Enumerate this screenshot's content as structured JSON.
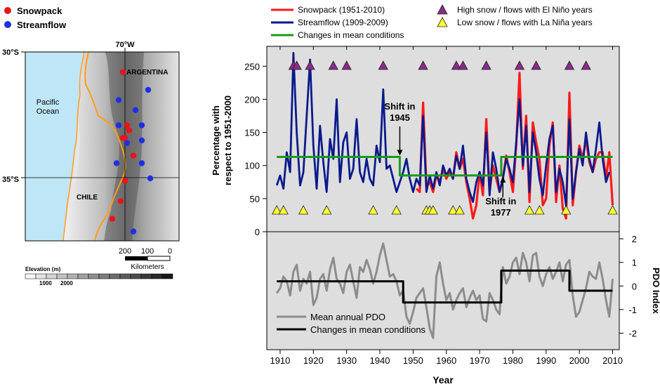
{
  "map": {
    "legend": [
      {
        "label": "Snowpack",
        "color": "#e8141a"
      },
      {
        "label": "Streamflow",
        "color": "#1f2fe0"
      }
    ],
    "lat_labels": [
      "30°S",
      "35°S"
    ],
    "lon_label": "70°W",
    "region_labels": [
      "ARGENTINA",
      "CHILE",
      "Pacific Ocean"
    ],
    "scalebar": {
      "ticks": [
        "200",
        "100",
        "0"
      ],
      "unit": "Kilometers"
    },
    "elevation": {
      "title": "Elevation (m)",
      "ticks": [
        "1000",
        "2000"
      ]
    },
    "snowpack_sites": [
      {
        "lon": -70.1,
        "lat": -30.8
      },
      {
        "lon": -69.9,
        "lat": -32.9
      },
      {
        "lon": -69.8,
        "lat": -33.1
      },
      {
        "lon": -70.0,
        "lat": -33.4
      },
      {
        "lon": -70.1,
        "lat": -33.4
      },
      {
        "lon": -69.6,
        "lat": -34.1
      },
      {
        "lon": -70.0,
        "lat": -35.1
      },
      {
        "lon": -70.2,
        "lat": -35.9
      },
      {
        "lon": -70.6,
        "lat": -36.6
      }
    ],
    "streamflow_sites": [
      {
        "lon": -68.9,
        "lat": -31.5
      },
      {
        "lon": -70.3,
        "lat": -31.9
      },
      {
        "lon": -69.5,
        "lat": -32.3
      },
      {
        "lon": -70.3,
        "lat": -32.9
      },
      {
        "lon": -69.2,
        "lat": -32.9
      },
      {
        "lon": -69.2,
        "lat": -33.5
      },
      {
        "lon": -69.9,
        "lat": -33.6
      },
      {
        "lon": -70.4,
        "lat": -34.4
      },
      {
        "lon": -69.2,
        "lat": -34.4
      },
      {
        "lon": -68.8,
        "lat": -35.0
      },
      {
        "lon": -69.6,
        "lat": -37.1
      }
    ]
  },
  "chart_data": [
    {
      "type": "line",
      "ylabel": "Percentage with respect to 1951-2000",
      "xlabel": "Year",
      "xlim": [
        1906,
        2012
      ],
      "ylim": [
        0,
        280
      ],
      "xticks": [
        1910,
        1920,
        1930,
        1940,
        1950,
        1960,
        1970,
        1980,
        1990,
        2000,
        2010
      ],
      "yticks": [
        0,
        50,
        100,
        150,
        200,
        250
      ],
      "grid": false,
      "legend_position": "top",
      "legend": [
        {
          "label": "Snowpack (1951-2010)",
          "color": "#ff1a1a",
          "kind": "line"
        },
        {
          "label": "Streamflow (1909-2009)",
          "color": "#0a1a8c",
          "kind": "line"
        },
        {
          "label": "Changes in mean conditions",
          "color": "#1a9a1a",
          "kind": "line"
        },
        {
          "label": "High snow / flows with El Niño years",
          "color": "#8b2a8b",
          "kind": "triangle"
        },
        {
          "label": "Low snow / flows with La Niña years",
          "color": "#ffff33",
          "kind": "triangle"
        }
      ],
      "series": [
        {
          "name": "Snowpack (1951-2010)",
          "color": "#ff1a1a",
          "x": [
            1951,
            1952,
            1953,
            1954,
            1955,
            1956,
            1957,
            1958,
            1959,
            1960,
            1961,
            1962,
            1963,
            1964,
            1965,
            1966,
            1967,
            1968,
            1969,
            1970,
            1971,
            1972,
            1973,
            1974,
            1975,
            1976,
            1977,
            1978,
            1979,
            1980,
            1981,
            1982,
            1983,
            1984,
            1985,
            1986,
            1987,
            1988,
            1989,
            1990,
            1991,
            1992,
            1993,
            1994,
            1995,
            1996,
            1997,
            1998,
            1999,
            2000,
            2001,
            2002,
            2003,
            2004,
            2005,
            2006,
            2007,
            2008,
            2009,
            2010
          ],
          "y": [
            65,
            60,
            195,
            70,
            75,
            60,
            85,
            75,
            95,
            80,
            90,
            80,
            120,
            95,
            110,
            75,
            50,
            20,
            40,
            90,
            55,
            170,
            60,
            100,
            80,
            60,
            80,
            115,
            90,
            60,
            130,
            240,
            95,
            175,
            45,
            165,
            135,
            110,
            40,
            50,
            130,
            165,
            45,
            100,
            35,
            20,
            210,
            40,
            90,
            130,
            110,
            140,
            105,
            90,
            110,
            120,
            120,
            80,
            120,
            40
          ]
        },
        {
          "name": "Streamflow (1909-2009)",
          "color": "#0a1a8c",
          "x": [
            1909,
            1910,
            1911,
            1912,
            1913,
            1914,
            1915,
            1916,
            1917,
            1918,
            1919,
            1920,
            1921,
            1922,
            1923,
            1924,
            1925,
            1926,
            1927,
            1928,
            1929,
            1930,
            1931,
            1932,
            1933,
            1934,
            1935,
            1936,
            1937,
            1938,
            1939,
            1940,
            1941,
            1942,
            1943,
            1944,
            1945,
            1946,
            1947,
            1948,
            1949,
            1950,
            1951,
            1952,
            1953,
            1954,
            1955,
            1956,
            1957,
            1958,
            1959,
            1960,
            1961,
            1962,
            1963,
            1964,
            1965,
            1966,
            1967,
            1968,
            1969,
            1970,
            1971,
            1972,
            1973,
            1974,
            1975,
            1976,
            1977,
            1978,
            1979,
            1980,
            1981,
            1982,
            1983,
            1984,
            1985,
            1986,
            1987,
            1988,
            1989,
            1990,
            1991,
            1992,
            1993,
            1994,
            1995,
            1996,
            1997,
            1998,
            1999,
            2000,
            2001,
            2002,
            2003,
            2004,
            2005,
            2006,
            2007,
            2008,
            2009
          ],
          "y": [
            70,
            85,
            65,
            120,
            90,
            270,
            150,
            70,
            90,
            175,
            260,
            130,
            65,
            160,
            105,
            60,
            140,
            110,
            200,
            75,
            135,
            150,
            80,
            95,
            170,
            90,
            75,
            110,
            80,
            70,
            130,
            105,
            215,
            95,
            100,
            80,
            60,
            75,
            90,
            110,
            80,
            60,
            80,
            70,
            175,
            60,
            85,
            65,
            90,
            70,
            100,
            85,
            95,
            80,
            115,
            95,
            130,
            80,
            60,
            45,
            75,
            90,
            70,
            150,
            55,
            120,
            95,
            60,
            80,
            110,
            95,
            75,
            135,
            200,
            100,
            160,
            60,
            150,
            120,
            80,
            55,
            100,
            140,
            160,
            60,
            95,
            75,
            40,
            170,
            50,
            90,
            125,
            100,
            150,
            110,
            90,
            125,
            165,
            110,
            75,
            90
          ]
        },
        {
          "name": "Changes in mean conditions",
          "color": "#1a9a1a",
          "step": true,
          "x": [
            1909,
            1946,
            1946,
            1976.5,
            1976.5,
            2010
          ],
          "y": [
            113,
            113,
            85,
            85,
            113,
            113
          ]
        }
      ],
      "el_nino_years": [
        1914,
        1915,
        1919,
        1926,
        1930,
        1941,
        1953,
        1963,
        1965,
        1972,
        1982,
        1987,
        1997,
        2002
      ],
      "la_nina_years": [
        1909,
        1911,
        1917,
        1924,
        1938,
        1945,
        1954,
        1955,
        1956,
        1962,
        1964,
        1985,
        1988,
        1996,
        2010
      ],
      "annotations": [
        {
          "text": [
            "Shift in",
            "1945"
          ],
          "x": 1946,
          "y": 113
        },
        {
          "text": [
            "Shift in",
            "1977"
          ],
          "x": 1977,
          "y": 85
        }
      ]
    },
    {
      "type": "line",
      "ylabel": "PDO Index",
      "xlabel": "Year",
      "xlim": [
        1906,
        2012
      ],
      "ylim": [
        -2.7,
        2.3
      ],
      "yticks": [
        -2,
        -1,
        0,
        1,
        2
      ],
      "grid": false,
      "legend_position": "bottom-left",
      "legend": [
        {
          "label": "Mean annual PDO",
          "color": "#8c8c8c"
        },
        {
          "label": "Changes in mean conditions",
          "color": "#000000"
        }
      ],
      "series": [
        {
          "name": "Mean annual PDO",
          "color": "#8c8c8c",
          "x": [
            1909,
            1910,
            1911,
            1912,
            1913,
            1914,
            1915,
            1916,
            1917,
            1918,
            1919,
            1920,
            1921,
            1922,
            1923,
            1924,
            1925,
            1926,
            1927,
            1928,
            1929,
            1930,
            1931,
            1932,
            1933,
            1934,
            1935,
            1936,
            1937,
            1938,
            1939,
            1940,
            1941,
            1942,
            1943,
            1944,
            1945,
            1946,
            1947,
            1948,
            1949,
            1950,
            1951,
            1952,
            1953,
            1954,
            1955,
            1956,
            1957,
            1958,
            1959,
            1960,
            1961,
            1962,
            1963,
            1964,
            1965,
            1966,
            1967,
            1968,
            1969,
            1970,
            1971,
            1972,
            1973,
            1974,
            1975,
            1976,
            1977,
            1978,
            1979,
            1980,
            1981,
            1982,
            1983,
            1984,
            1985,
            1986,
            1987,
            1988,
            1989,
            1990,
            1991,
            1992,
            1993,
            1994,
            1995,
            1996,
            1997,
            1998,
            1999,
            2000,
            2001,
            2002,
            2003,
            2004,
            2005,
            2006,
            2007,
            2008,
            2009,
            2010
          ],
          "y": [
            -0.3,
            -0.1,
            0.4,
            0.2,
            -0.4,
            0.6,
            0.9,
            -0.2,
            0.3,
            0.1,
            0.6,
            -0.8,
            -0.5,
            0.3,
            0.5,
            -0.2,
            0.7,
            1.2,
            0.3,
            0.1,
            -0.3,
            0.6,
            0.9,
            0.2,
            -0.5,
            0.8,
            0.6,
            1.1,
            0.7,
            0.1,
            0.6,
            1.3,
            1.8,
            1.1,
            0.4,
            0.5,
            0.2,
            -0.4,
            -0.2,
            -1.3,
            -1.6,
            -1.1,
            -0.5,
            -0.3,
            -0.1,
            -0.9,
            -1.8,
            -2.2,
            0.4,
            1.0,
            0.1,
            -0.6,
            -0.3,
            -1.0,
            -0.6,
            -0.3,
            -0.1,
            -0.9,
            -0.5,
            -0.2,
            -0.6,
            -0.4,
            -1.4,
            -1.5,
            -0.3,
            -0.6,
            -1.0,
            -1.2,
            0.8,
            0.1,
            0.4,
            1.0,
            1.2,
            0.5,
            1.4,
            1.0,
            0.2,
            1.3,
            1.4,
            0.4,
            0.0,
            0.5,
            0.8,
            0.3,
            0.6,
            1.0,
            0.2,
            0.9,
            1.1,
            -0.4,
            -1.3,
            -1.1,
            -0.6,
            -0.1,
            0.6,
            0.4,
            0.3,
            1.0,
            0.3,
            -0.6,
            -1.3,
            0.3
          ]
        },
        {
          "name": "Changes in mean conditions",
          "color": "#000000",
          "step": true,
          "x": [
            1909,
            1947,
            1947,
            1976.5,
            1976.5,
            1997,
            1997,
            2010
          ],
          "y": [
            0.2,
            0.2,
            -0.7,
            -0.7,
            0.65,
            0.65,
            -0.2,
            -0.2
          ]
        }
      ]
    }
  ]
}
